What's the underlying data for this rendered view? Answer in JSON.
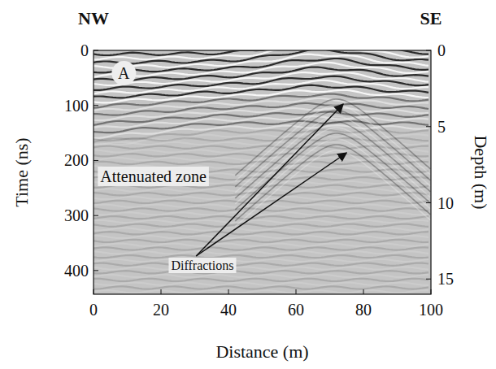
{
  "chart_data": {
    "type": "radargram",
    "top_labels": {
      "left": "NW",
      "right": "SE"
    },
    "panel_label": "A",
    "annotations": [
      "Attenuated zone",
      "Diffractions"
    ],
    "x_label": "Distance (m)",
    "y_label": "Time (ns)",
    "y2_label": "Depth (m)",
    "xlim": [
      0,
      100
    ],
    "xticks": [
      0,
      20,
      40,
      60,
      80,
      100
    ],
    "ylim": [
      0,
      443
    ],
    "yticks": [
      0,
      100,
      200,
      300,
      400
    ],
    "y2lim": [
      0,
      16
    ],
    "y2ticks": [
      0,
      5,
      10,
      15
    ]
  }
}
